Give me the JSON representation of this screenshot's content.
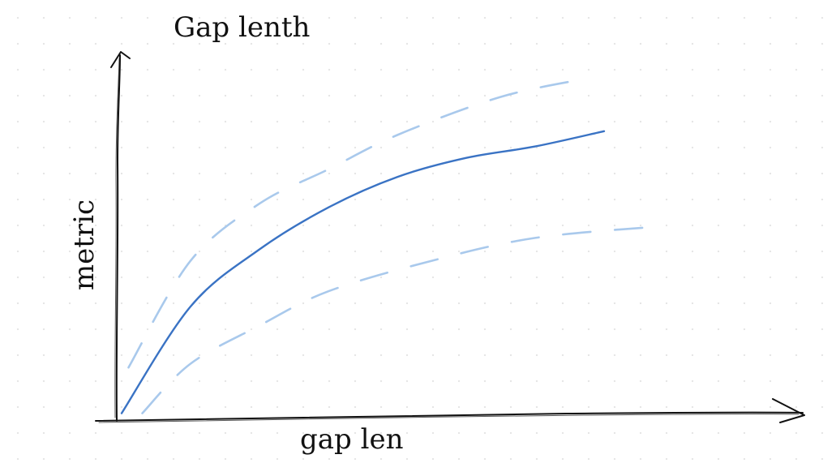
{
  "chart_data": {
    "type": "line",
    "title": "Gap lenth",
    "xlabel": "gap len",
    "ylabel": "metric",
    "style": "hand-drawn sketch",
    "grid": "dotted background",
    "xlim": [
      0,
      1
    ],
    "ylim": [
      0,
      1
    ],
    "series": [
      {
        "role": "mean",
        "color": "#3a73c4",
        "line_style": "solid",
        "x": [
          0.0,
          0.1,
          0.2,
          0.3,
          0.4,
          0.5,
          0.6,
          0.7
        ],
        "y": [
          0.02,
          0.3,
          0.45,
          0.56,
          0.64,
          0.69,
          0.72,
          0.76
        ]
      },
      {
        "role": "upper band",
        "color": "#a9c9ec",
        "line_style": "dashed",
        "x": [
          0.01,
          0.1,
          0.2,
          0.3,
          0.4,
          0.55,
          0.68
        ],
        "y": [
          0.14,
          0.42,
          0.57,
          0.66,
          0.75,
          0.85,
          0.9
        ]
      },
      {
        "role": "lower band",
        "color": "#a9c9ec",
        "line_style": "dashed",
        "x": [
          0.03,
          0.1,
          0.2,
          0.3,
          0.45,
          0.6,
          0.78
        ],
        "y": [
          0.02,
          0.15,
          0.25,
          0.34,
          0.42,
          0.48,
          0.51
        ]
      }
    ],
    "colors": {
      "mean": "#3a73c4",
      "band": "#a9c9ec",
      "axis": "#111111"
    }
  }
}
